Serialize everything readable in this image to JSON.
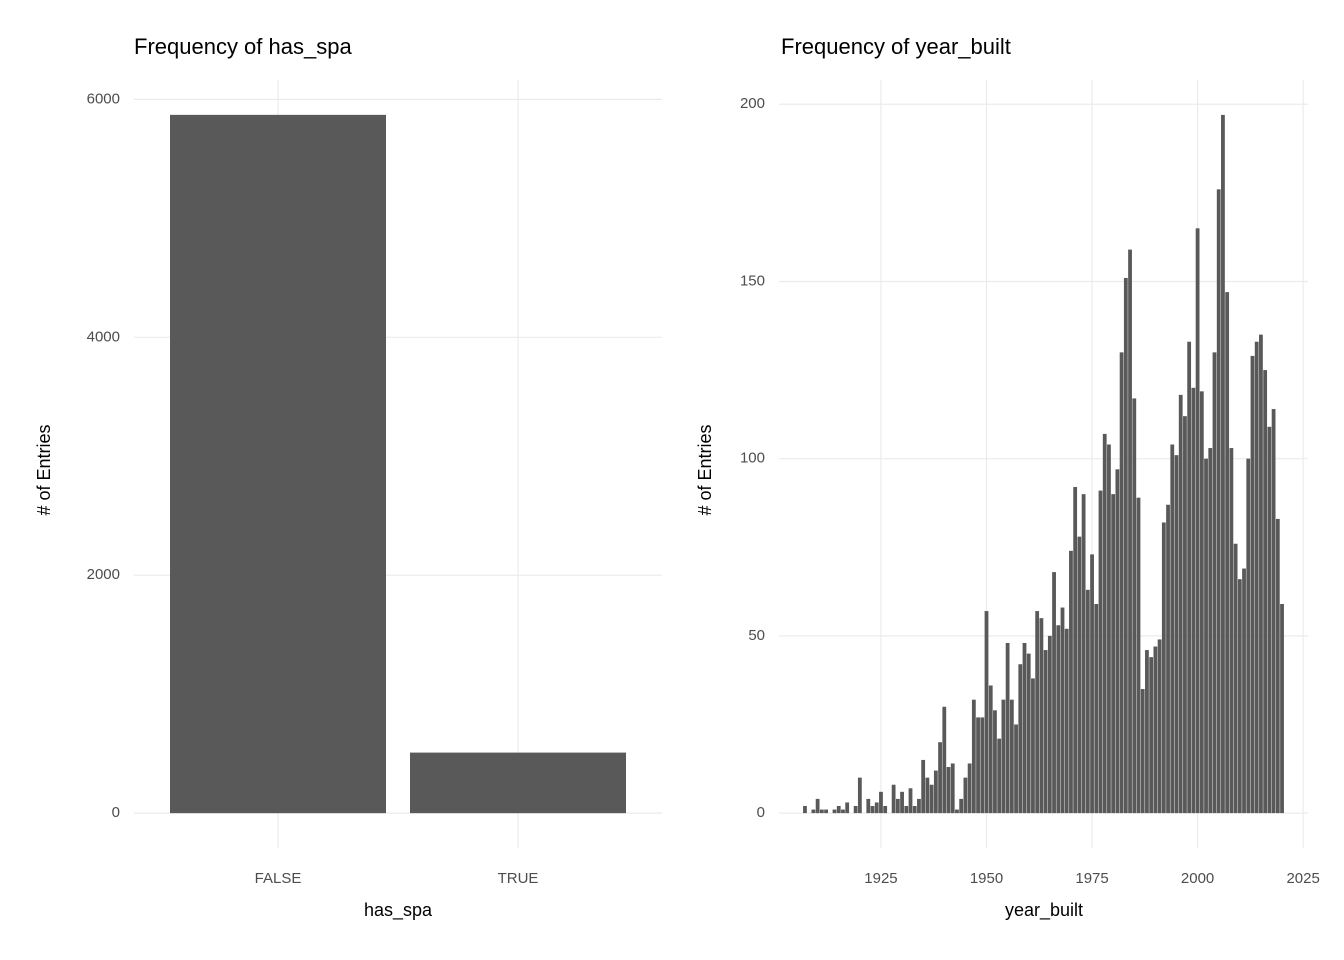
{
  "chart_data": [
    {
      "type": "bar",
      "title": "Frequency of has_spa",
      "x_label": "has_spa",
      "y_label": "# of Entries",
      "categories": [
        "FALSE",
        "TRUE"
      ],
      "values": [
        5870,
        509
      ],
      "color": "#595959",
      "ylim": [
        -293,
        6163
      ],
      "yticks": [
        0,
        2000,
        4000,
        6000
      ],
      "grid": true
    },
    {
      "type": "histogram",
      "title": "Frequency of year_built",
      "x_label": "year_built",
      "y_label": "# of Entries",
      "x": [
        1907,
        1908,
        1909,
        1910,
        1911,
        1912,
        1913,
        1914,
        1915,
        1916,
        1917,
        1918,
        1919,
        1920,
        1921,
        1922,
        1923,
        1924,
        1925,
        1926,
        1927,
        1928,
        1929,
        1930,
        1931,
        1932,
        1933,
        1934,
        1935,
        1936,
        1937,
        1938,
        1939,
        1940,
        1941,
        1942,
        1943,
        1944,
        1945,
        1946,
        1947,
        1948,
        1949,
        1950,
        1951,
        1952,
        1953,
        1954,
        1955,
        1956,
        1957,
        1958,
        1959,
        1960,
        1961,
        1962,
        1963,
        1964,
        1965,
        1966,
        1967,
        1968,
        1969,
        1970,
        1971,
        1972,
        1973,
        1974,
        1975,
        1976,
        1977,
        1978,
        1979,
        1980,
        1981,
        1982,
        1983,
        1984,
        1985,
        1986,
        1987,
        1988,
        1989,
        1990,
        1991,
        1992,
        1993,
        1994,
        1995,
        1996,
        1997,
        1998,
        1999,
        2000,
        2001,
        2002,
        2003,
        2004,
        2005,
        2006,
        2007,
        2008,
        2009,
        2010,
        2011,
        2012,
        2013,
        2014,
        2015,
        2016,
        2017,
        2018,
        2019,
        2020
      ],
      "values": [
        2,
        0,
        1,
        4,
        1,
        1,
        0,
        1,
        2,
        1,
        3,
        0,
        2,
        10,
        0,
        4,
        2,
        3,
        6,
        2,
        0,
        8,
        4,
        6,
        2,
        7,
        2,
        4,
        15,
        10,
        8,
        12,
        20,
        30,
        13,
        14,
        1,
        4,
        10,
        14,
        32,
        27,
        27,
        57,
        36,
        29,
        21,
        32,
        48,
        32,
        25,
        42,
        48,
        45,
        38,
        57,
        55,
        46,
        50,
        68,
        53,
        58,
        52,
        74,
        92,
        78,
        90,
        63,
        73,
        59,
        91,
        107,
        104,
        90,
        97,
        130,
        151,
        159,
        117,
        89,
        35,
        46,
        44,
        47,
        49,
        82,
        87,
        104,
        101,
        118,
        112,
        133,
        120,
        165,
        119,
        100,
        103,
        130,
        176,
        197,
        147,
        103,
        76,
        66,
        69,
        100,
        129,
        133,
        135,
        125,
        109,
        114,
        83,
        59
      ],
      "color": "#595959",
      "xlim": [
        1900.85,
        2026.15
      ],
      "xticks": [
        1925,
        1950,
        1975,
        2000,
        2025
      ],
      "ylim": [
        -9.85,
        206.85
      ],
      "yticks": [
        0,
        50,
        100,
        150,
        200
      ],
      "grid": true
    }
  ]
}
